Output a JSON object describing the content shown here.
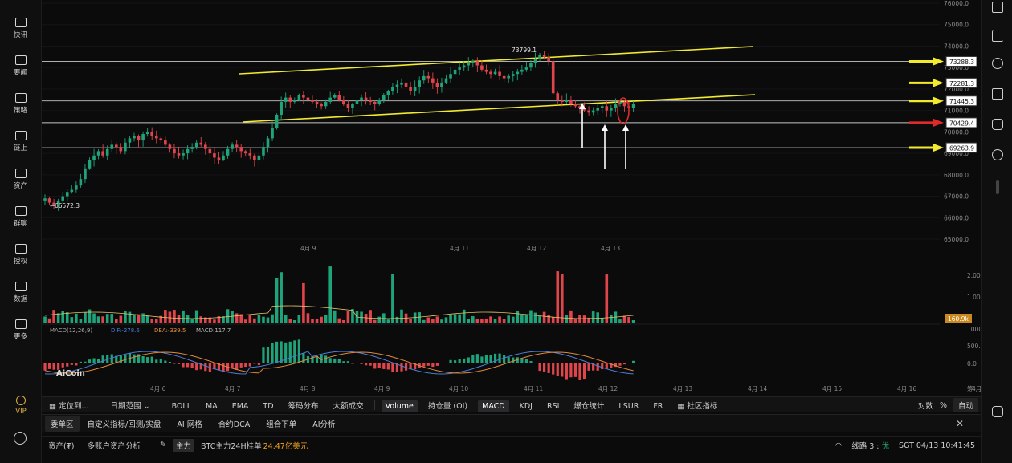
{
  "sidebar": {
    "items": [
      {
        "label": "快讯",
        "icon": "news-flash-icon"
      },
      {
        "label": "要闻",
        "icon": "headlines-icon"
      },
      {
        "label": "策略",
        "icon": "strategy-robot-icon"
      },
      {
        "label": "链上",
        "icon": "onchain-icon"
      },
      {
        "label": "资产",
        "icon": "wallet-icon"
      },
      {
        "label": "群聊",
        "icon": "chat-icon"
      },
      {
        "label": "授权",
        "icon": "api-auth-icon"
      },
      {
        "label": "数据",
        "icon": "data-chart-icon"
      },
      {
        "label": "更多",
        "icon": "more-grid-icon"
      }
    ],
    "vip_label": "VIP"
  },
  "chart": {
    "price_labels": [
      "76000.0",
      "75000.0",
      "74000.0",
      "73000.0",
      "72000.0",
      "71000.0",
      "70000.0",
      "69000.0",
      "68000.0",
      "67000.0",
      "66000.0",
      "65000.0"
    ],
    "level_tags": [
      {
        "value": "73288.3",
        "arrow_color": "#f2ea2e"
      },
      {
        "value": "72281.3",
        "arrow_color": "#f2ea2e"
      },
      {
        "value": "71445.3",
        "arrow_color": "#f2ea2e"
      },
      {
        "value": "70429.4",
        "arrow_color": "#e02a2a"
      },
      {
        "value": "69263.9",
        "arrow_color": "#f2ea2e"
      }
    ],
    "high_label": "73799.1",
    "low_label": "66572.3",
    "volume_labels": [
      "2.00M",
      "1.00M"
    ],
    "volume_tag": "160.9k",
    "macd_labels": [
      "1000.0",
      "500.0",
      "0.0"
    ],
    "macd_legend": {
      "name": "MACD(12,26,9)",
      "dif": "DIF:-278.6",
      "dea": "DEA:-339.5",
      "macd": "MACD:117.7"
    },
    "date_labels": [
      "4月 6",
      "4月 7",
      "4月 8",
      "4月 9",
      "4月 10",
      "4月 11",
      "4月 12",
      "4月 13",
      "4月 14",
      "4月 15",
      "4月 16",
      "4月 17"
    ],
    "top_date_labels": [
      "4月 9",
      "4月 11",
      "4月 12",
      "4月 13"
    ],
    "watermark": "AiCoin",
    "corner_text": "筹",
    "colors": {
      "up": "#1fa37a",
      "down": "#e0454b",
      "trend": "#f2ea2e",
      "level": "#e6e6e6"
    }
  },
  "toolbar": {
    "locate": "定位到...",
    "range": "日期范围",
    "indicators": [
      "BOLL",
      "MA",
      "EMA",
      "TD",
      "筹码分布",
      "大额成交"
    ],
    "sub_indicators": [
      "Volume",
      "持仓量 (OI)",
      "MACD",
      "KDJ",
      "RSI",
      "爆仓统计",
      "LSUR",
      "FR"
    ],
    "community": "社区指标",
    "right": {
      "log": "对数",
      "percent": "%",
      "auto": "自动"
    }
  },
  "bottom_tabs": [
    "委单区",
    "自定义指标/回测/实盘",
    "AI 网格",
    "合约DCA",
    "组合下单",
    "AI分析"
  ],
  "status": {
    "assets": "资产(₮)",
    "multi_account": "多账户资产分析",
    "badge": "主力",
    "ticker_text": "BTC主力24H挂单",
    "ticker_value": "24.47亿美元",
    "line_label": "线路 3 :",
    "line_quality": "优",
    "time": "SGT 04/13 10:41:45"
  }
}
